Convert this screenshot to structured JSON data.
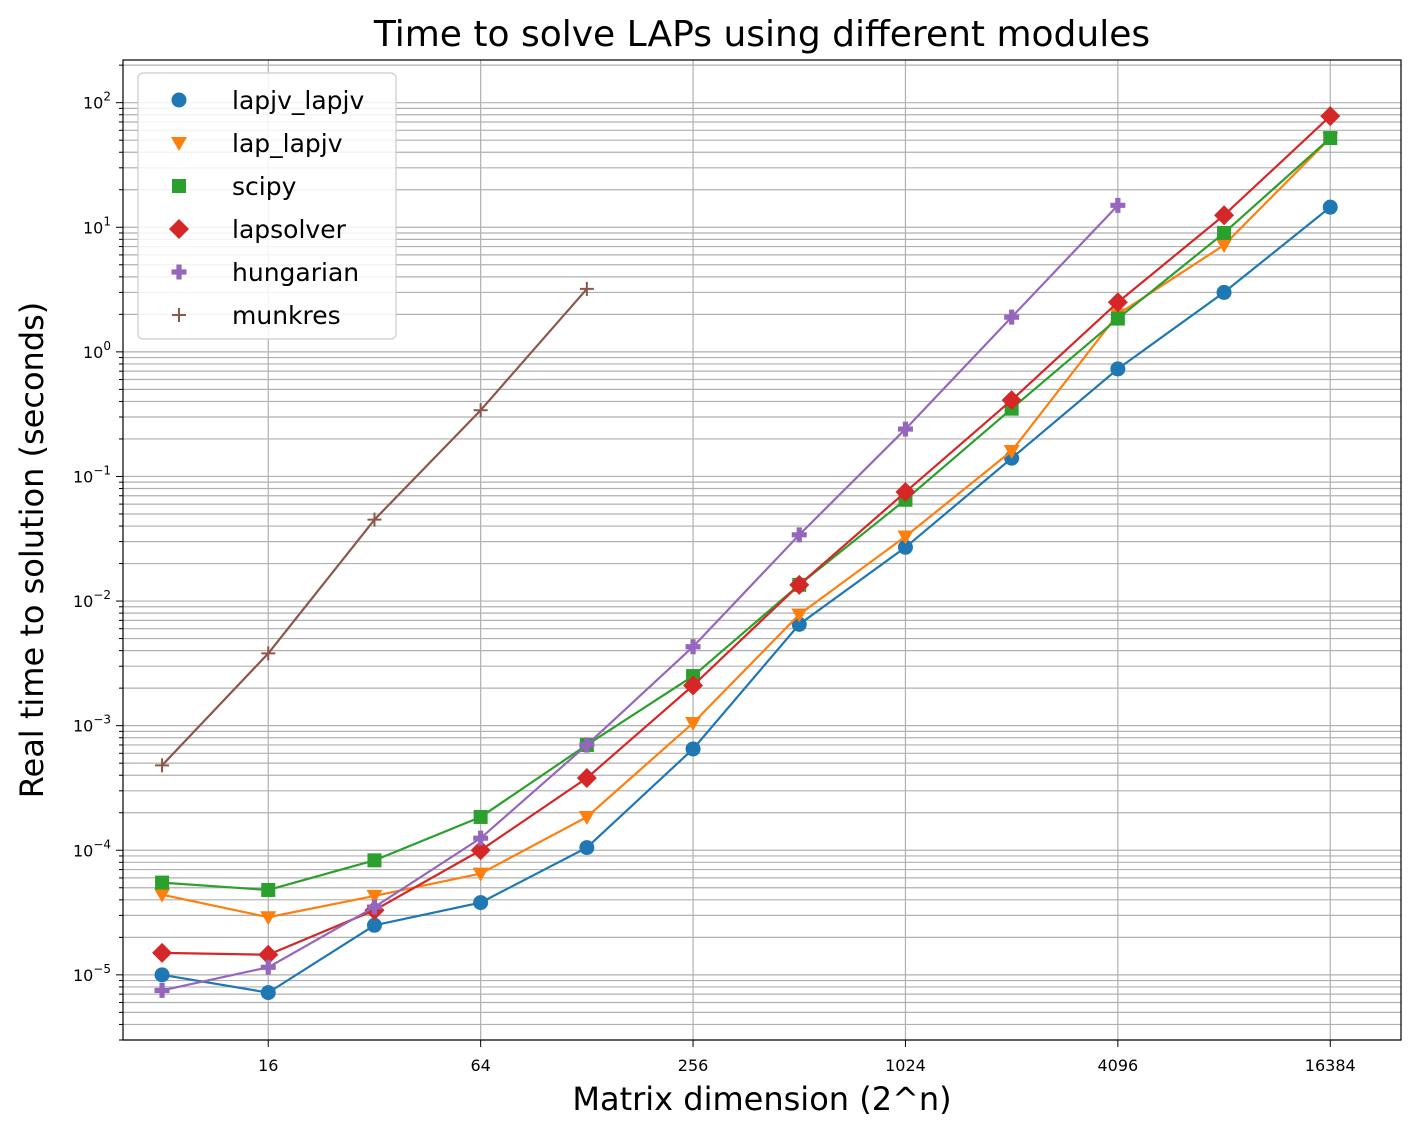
{
  "chart_data": {
    "type": "line",
    "title": "Time to solve LAPs using different modules",
    "xlabel": "Matrix dimension (2^n)",
    "ylabel": "Real time to solution (seconds)",
    "x_scale": "log2",
    "y_scale": "log10",
    "xlim": [
      6.2,
      26000
    ],
    "ylim": [
      3e-06,
      220
    ],
    "x": [
      8,
      16,
      32,
      64,
      128,
      256,
      512,
      1024,
      2048,
      4096,
      8192,
      16384
    ],
    "x_ticks": [
      16,
      64,
      256,
      1024,
      4096,
      16384
    ],
    "x_tick_labels": [
      "16",
      "64",
      "256",
      "1024",
      "4096",
      "16384"
    ],
    "y_ticks": [
      -5,
      -4,
      -3,
      -2,
      -1,
      0,
      1,
      2
    ],
    "y_tick_labels": [
      "10",
      "10",
      "10",
      "10",
      "10",
      "10",
      "10",
      "10"
    ],
    "y_tick_exponents": [
      "−5",
      "−4",
      "−3",
      "−2",
      "−1",
      "0",
      "1",
      "2"
    ],
    "grid": true,
    "legend_position": "top-left",
    "series": [
      {
        "name": "lapjv_lapjv",
        "color": "#1f77b4",
        "marker": "circle",
        "values": [
          1e-05,
          7.2e-06,
          2.5e-05,
          3.8e-05,
          0.000105,
          0.00065,
          0.0065,
          0.027,
          0.14,
          0.73,
          3.0,
          14.5
        ]
      },
      {
        "name": "lap_lapjv",
        "color": "#ff7f0e",
        "marker": "triangle-down",
        "values": [
          4.4e-05,
          2.9e-05,
          4.3e-05,
          6.5e-05,
          0.000185,
          0.00105,
          0.0078,
          0.033,
          0.16,
          2.0,
          7.2,
          52
        ]
      },
      {
        "name": "scipy",
        "color": "#2ca02c",
        "marker": "square",
        "values": [
          5.5e-05,
          4.8e-05,
          8.3e-05,
          0.000185,
          0.0007,
          0.0025,
          0.0135,
          0.065,
          0.35,
          1.85,
          9.0,
          52
        ]
      },
      {
        "name": "lapsolver",
        "color": "#d62728",
        "marker": "diamond",
        "values": [
          1.5e-05,
          1.45e-05,
          3.3e-05,
          0.0001,
          0.00038,
          0.0021,
          0.0135,
          0.075,
          0.41,
          2.5,
          12.5,
          78
        ]
      },
      {
        "name": "hungarian",
        "color": "#9467bd",
        "marker": "plus-filled",
        "values": [
          7.5e-06,
          1.15e-05,
          3.5e-05,
          0.000125,
          0.0007,
          0.0043,
          0.034,
          0.24,
          1.9,
          15,
          null,
          null
        ]
      },
      {
        "name": "munkres",
        "color": "#8c564b",
        "marker": "plus",
        "values": [
          0.00048,
          0.0038,
          0.045,
          0.34,
          3.2,
          null,
          null,
          null,
          null,
          null,
          null,
          null
        ]
      }
    ]
  }
}
